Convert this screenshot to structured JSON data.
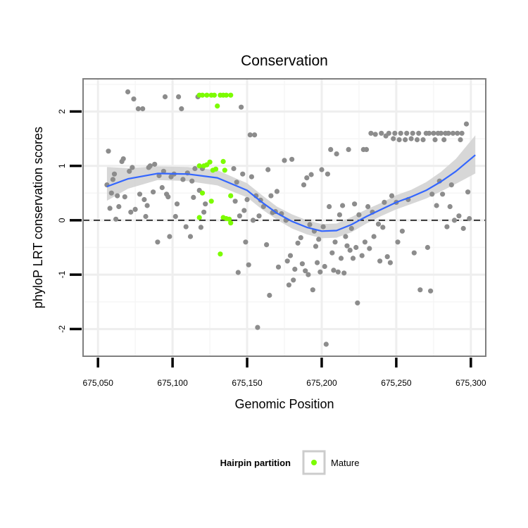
{
  "chart_data": {
    "type": "scatter",
    "title": "Conservation",
    "xlabel": "Genomic Position",
    "ylabel": "phyloP LRT conservation scores",
    "xlim": [
      675040,
      675310
    ],
    "ylim": [
      -2.5,
      2.6
    ],
    "x_ticks": [
      675050,
      675100,
      675150,
      675200,
      675250,
      675300
    ],
    "x_tick_labels": [
      "675,050",
      "675,100",
      "675,150",
      "675,200",
      "675,250",
      "675,300"
    ],
    "y_ticks": [
      -2,
      -1,
      0,
      1,
      2
    ],
    "y_tick_labels": [
      "-2",
      "-1",
      "0",
      "1",
      "2"
    ],
    "grid": true,
    "reference_line": {
      "y": 0,
      "style": "dashed"
    },
    "legend": {
      "title": "Hairpin partition",
      "placement": "bottom",
      "entries": [
        "Mature"
      ]
    },
    "colors": {
      "other": "#8c8c8c",
      "mature": "#7cfc00",
      "smooth": "#3366ff",
      "band": "#d3d3d3",
      "panel_border": "#7f7f7f"
    },
    "series": [
      {
        "name": "Mature",
        "points": [
          [
            675118,
            2.3
          ],
          [
            675120,
            2.3
          ],
          [
            675123,
            2.3
          ],
          [
            675126,
            2.3
          ],
          [
            675128,
            2.3
          ],
          [
            675132,
            2.3
          ],
          [
            675134,
            2.3
          ],
          [
            675136,
            2.3
          ],
          [
            675139,
            2.3
          ],
          [
            675130,
            2.1
          ],
          [
            675118,
            1.0
          ],
          [
            675121,
            1.0
          ],
          [
            675123,
            1.02
          ],
          [
            675125,
            1.07
          ],
          [
            675127,
            0.92
          ],
          [
            675129,
            0.94
          ],
          [
            675134,
            1.08
          ],
          [
            675135,
            0.92
          ],
          [
            675120,
            0.5
          ],
          [
            675126,
            0.35
          ],
          [
            675139,
            0.45
          ],
          [
            675118,
            0.05
          ],
          [
            675134,
            0.05
          ],
          [
            675136,
            0.03
          ],
          [
            675138,
            0.02
          ],
          [
            675139,
            -0.05
          ],
          [
            675132,
            -0.62
          ]
        ]
      },
      {
        "points": [
          [
            675056,
            0.65
          ],
          [
            675057,
            1.27
          ],
          [
            675058,
            0.22
          ],
          [
            675059,
            0.5
          ],
          [
            675060,
            0.75
          ],
          [
            675061,
            0.85
          ],
          [
            675062,
            0.02
          ],
          [
            675063,
            0.45
          ],
          [
            675064,
            0.25
          ],
          [
            675066,
            1.08
          ],
          [
            675067,
            1.13
          ],
          [
            675068,
            0.43
          ],
          [
            675070,
            2.36
          ],
          [
            675071,
            0.9
          ],
          [
            675072,
            0.15
          ],
          [
            675073,
            0.97
          ],
          [
            675074,
            2.23
          ],
          [
            675075,
            0.2
          ],
          [
            675077,
            2.05
          ],
          [
            675078,
            0.48
          ],
          [
            675080,
            2.05
          ],
          [
            675081,
            0.38
          ],
          [
            675082,
            0.07
          ],
          [
            675083,
            0.27
          ],
          [
            675084,
            0.97
          ],
          [
            675085,
            1.0
          ],
          [
            675087,
            0.52
          ],
          [
            675088,
            1.03
          ],
          [
            675090,
            -0.4
          ],
          [
            675091,
            0.82
          ],
          [
            675093,
            0.6
          ],
          [
            675094,
            0.9
          ],
          [
            675095,
            2.27
          ],
          [
            675096,
            0.48
          ],
          [
            675097,
            0.43
          ],
          [
            675098,
            -0.3
          ],
          [
            675099,
            0.8
          ],
          [
            675101,
            0.85
          ],
          [
            675102,
            0.07
          ],
          [
            675103,
            0.3
          ],
          [
            675104,
            2.27
          ],
          [
            675106,
            2.05
          ],
          [
            675107,
            0.75
          ],
          [
            675109,
            -0.12
          ],
          [
            675110,
            0.87
          ],
          [
            675112,
            -0.3
          ],
          [
            675113,
            0.72
          ],
          [
            675114,
            0.42
          ],
          [
            675115,
            0.95
          ],
          [
            675117,
            2.27
          ],
          [
            675118,
            0.55
          ],
          [
            675119,
            -0.13
          ],
          [
            675120,
            0.95
          ],
          [
            675121,
            0.15
          ],
          [
            675122,
            0.3
          ],
          [
            675141,
            0.95
          ],
          [
            675142,
            0.35
          ],
          [
            675143,
            0.7
          ],
          [
            675144,
            -0.96
          ],
          [
            675145,
            0.08
          ],
          [
            675146,
            2.08
          ],
          [
            675147,
            0.85
          ],
          [
            675148,
            0.18
          ],
          [
            675149,
            -0.4
          ],
          [
            675150,
            0.38
          ],
          [
            675151,
            -0.82
          ],
          [
            675152,
            1.57
          ],
          [
            675153,
            0.8
          ],
          [
            675154,
            0.0
          ],
          [
            675155,
            1.57
          ],
          [
            675156,
            0.45
          ],
          [
            675157,
            -1.97
          ],
          [
            675158,
            0.08
          ],
          [
            675159,
            0.37
          ],
          [
            675161,
            0.25
          ],
          [
            675163,
            -0.45
          ],
          [
            675164,
            0.93
          ],
          [
            675165,
            -1.38
          ],
          [
            675166,
            0.45
          ],
          [
            675167,
            0.14
          ],
          [
            675169,
            0.16
          ],
          [
            675170,
            0.53
          ],
          [
            675171,
            -0.86
          ],
          [
            675173,
            0.12
          ],
          [
            675175,
            1.1
          ],
          [
            675176,
            0.0
          ],
          [
            675177,
            -0.75
          ],
          [
            675178,
            -1.19
          ],
          [
            675179,
            -0.65
          ],
          [
            675180,
            1.12
          ],
          [
            675181,
            -1.1
          ],
          [
            675182,
            -0.9
          ],
          [
            675184,
            -0.42
          ],
          [
            675186,
            -0.32
          ],
          [
            675187,
            -0.8
          ],
          [
            675188,
            0.65
          ],
          [
            675189,
            -0.93
          ],
          [
            675190,
            0.78
          ],
          [
            675191,
            -1.0
          ],
          [
            675192,
            -0.08
          ],
          [
            675193,
            0.84
          ],
          [
            675194,
            -1.28
          ],
          [
            675195,
            -0.2
          ],
          [
            675196,
            -0.48
          ],
          [
            675197,
            -0.78
          ],
          [
            675198,
            -0.35
          ],
          [
            675199,
            -0.95
          ],
          [
            675200,
            0.93
          ],
          [
            675201,
            -0.12
          ],
          [
            675202,
            -0.85
          ],
          [
            675203,
            -2.28
          ],
          [
            675204,
            0.85
          ],
          [
            675205,
            0.25
          ],
          [
            675206,
            1.3
          ],
          [
            675207,
            -0.6
          ],
          [
            675208,
            -0.92
          ],
          [
            675209,
            -0.4
          ],
          [
            675210,
            1.22
          ],
          [
            675211,
            -0.95
          ],
          [
            675212,
            0.1
          ],
          [
            675213,
            -0.7
          ],
          [
            675214,
            0.27
          ],
          [
            675215,
            -0.97
          ],
          [
            675216,
            -0.3
          ],
          [
            675217,
            -0.47
          ],
          [
            675218,
            1.3
          ],
          [
            675219,
            -0.55
          ],
          [
            675220,
            -0.15
          ],
          [
            675221,
            -0.7
          ],
          [
            675222,
            0.3
          ],
          [
            675223,
            -0.5
          ],
          [
            675224,
            -1.52
          ],
          [
            675225,
            0.1
          ],
          [
            675227,
            -0.65
          ],
          [
            675228,
            1.3
          ],
          [
            675229,
            -0.4
          ],
          [
            675230,
            1.3
          ],
          [
            675231,
            0.25
          ],
          [
            675232,
            -0.52
          ],
          [
            675233,
            1.6
          ],
          [
            675234,
            0.15
          ],
          [
            675235,
            -0.3
          ],
          [
            675236,
            1.58
          ],
          [
            675238,
            -0.07
          ],
          [
            675239,
            -0.75
          ],
          [
            675240,
            1.6
          ],
          [
            675241,
            -0.13
          ],
          [
            675242,
            0.33
          ],
          [
            675243,
            1.55
          ],
          [
            675244,
            -0.67
          ],
          [
            675245,
            1.6
          ],
          [
            675246,
            -0.78
          ],
          [
            675247,
            0.45
          ],
          [
            675248,
            1.5
          ],
          [
            675249,
            1.6
          ],
          [
            675250,
            0.33
          ],
          [
            675251,
            -0.4
          ],
          [
            675252,
            1.48
          ],
          [
            675253,
            1.6
          ],
          [
            675254,
            -0.2
          ],
          [
            675256,
            1.48
          ],
          [
            675257,
            1.6
          ],
          [
            675258,
            0.38
          ],
          [
            675260,
            1.5
          ],
          [
            675261,
            1.6
          ],
          [
            675262,
            -0.6
          ],
          [
            675264,
            1.48
          ],
          [
            675265,
            1.6
          ],
          [
            675266,
            -1.28
          ],
          [
            675268,
            1.48
          ],
          [
            675270,
            1.6
          ],
          [
            675271,
            -0.5
          ],
          [
            675272,
            1.6
          ],
          [
            675273,
            -1.3
          ],
          [
            675274,
            0.48
          ],
          [
            675275,
            1.6
          ],
          [
            675276,
            1.48
          ],
          [
            675277,
            0.27
          ],
          [
            675278,
            1.6
          ],
          [
            675279,
            0.72
          ],
          [
            675280,
            1.6
          ],
          [
            675281,
            0.48
          ],
          [
            675282,
            1.48
          ],
          [
            675283,
            1.6
          ],
          [
            675284,
            -0.12
          ],
          [
            675285,
            1.6
          ],
          [
            675286,
            0.25
          ],
          [
            675287,
            0.65
          ],
          [
            675288,
            1.6
          ],
          [
            675289,
            0.0
          ],
          [
            675291,
            1.6
          ],
          [
            675292,
            0.08
          ],
          [
            675293,
            1.48
          ],
          [
            675294,
            1.6
          ],
          [
            675295,
            -0.15
          ],
          [
            675297,
            1.77
          ],
          [
            675298,
            0.52
          ],
          [
            675299,
            0.03
          ]
        ]
      }
    ],
    "smooth": {
      "x": [
        675056,
        675070,
        675090,
        675110,
        675130,
        675150,
        675160,
        675170,
        675180,
        675190,
        675200,
        675210,
        675220,
        675230,
        675240,
        675250,
        675260,
        675270,
        675280,
        675290,
        675303
      ],
      "y": [
        0.62,
        0.76,
        0.86,
        0.85,
        0.78,
        0.55,
        0.33,
        0.13,
        -0.02,
        -0.13,
        -0.2,
        -0.19,
        -0.08,
        0.07,
        0.2,
        0.33,
        0.43,
        0.55,
        0.71,
        0.9,
        1.2
      ],
      "lo": [
        0.36,
        0.58,
        0.74,
        0.72,
        0.64,
        0.42,
        0.2,
        0.01,
        -0.15,
        -0.26,
        -0.33,
        -0.32,
        -0.22,
        -0.06,
        0.08,
        0.2,
        0.3,
        0.4,
        0.53,
        0.67,
        0.86
      ],
      "hi": [
        0.98,
        0.96,
        0.99,
        0.98,
        0.92,
        0.68,
        0.46,
        0.25,
        0.11,
        0.0,
        -0.07,
        -0.06,
        0.06,
        0.2,
        0.32,
        0.46,
        0.56,
        0.7,
        0.89,
        1.13,
        1.56
      ]
    }
  }
}
